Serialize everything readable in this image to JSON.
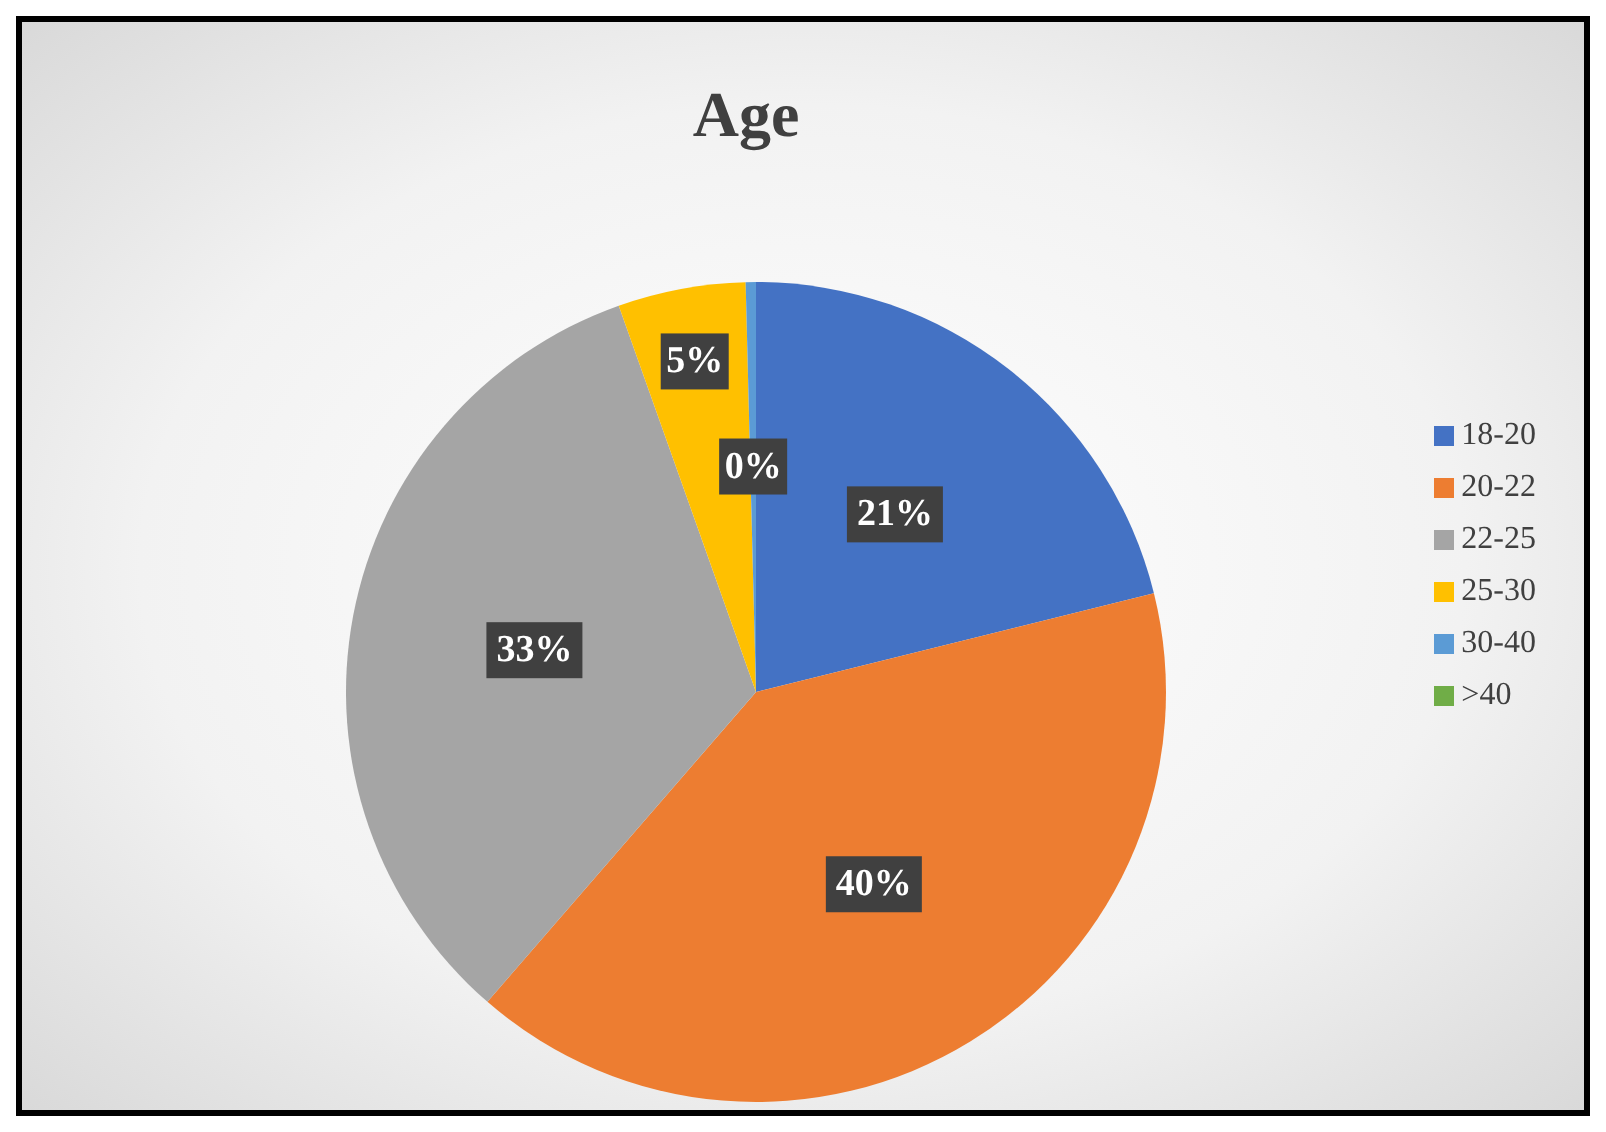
{
  "chart_data": {
    "type": "pie",
    "title": "Age",
    "categories": [
      "18-20",
      "20-22",
      "22-25",
      "25-30",
      "30-40",
      ">40"
    ],
    "values": [
      21,
      40,
      33,
      5,
      0.4,
      0
    ],
    "value_labels": [
      "21%",
      "40%",
      "33%",
      "5%",
      "0%",
      null
    ],
    "colors": [
      "#4472c4",
      "#ed7d31",
      "#a5a5a5",
      "#ffc000",
      "#5b9bd5",
      "#70ad47"
    ],
    "legend": "right"
  }
}
